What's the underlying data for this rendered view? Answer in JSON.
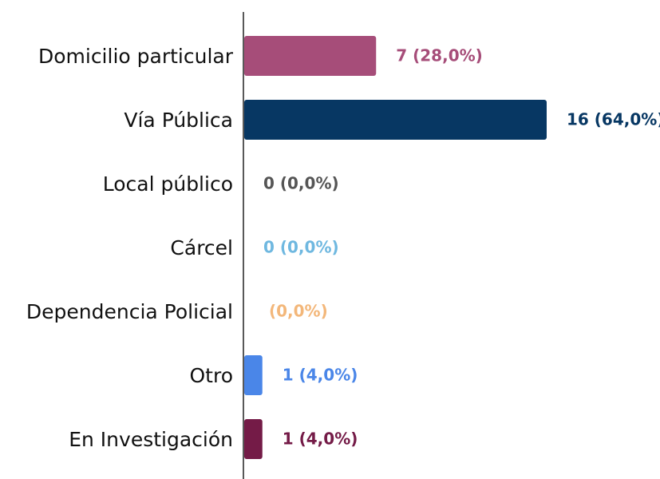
{
  "chart_data": {
    "type": "bar",
    "orientation": "horizontal",
    "categories": [
      "Domicilio particular",
      "Vía Pública",
      "Local público",
      "Cárcel",
      "Dependencia Policial",
      "Otro",
      "En Investigación"
    ],
    "values": [
      7,
      16,
      0,
      0,
      0,
      1,
      1
    ],
    "value_labels": [
      "7 (28,0%)",
      "16 (64,0%)",
      "0 (0,0%)",
      "0 (0,0%)",
      " (0,0%)",
      "1 (4,0%)",
      "1 (4,0%)"
    ],
    "colors": [
      "#a64d79",
      "#073763",
      "#555555",
      "#6fb8e0",
      "#f3b77a",
      "#4a86e8",
      "#741b47"
    ]
  }
}
